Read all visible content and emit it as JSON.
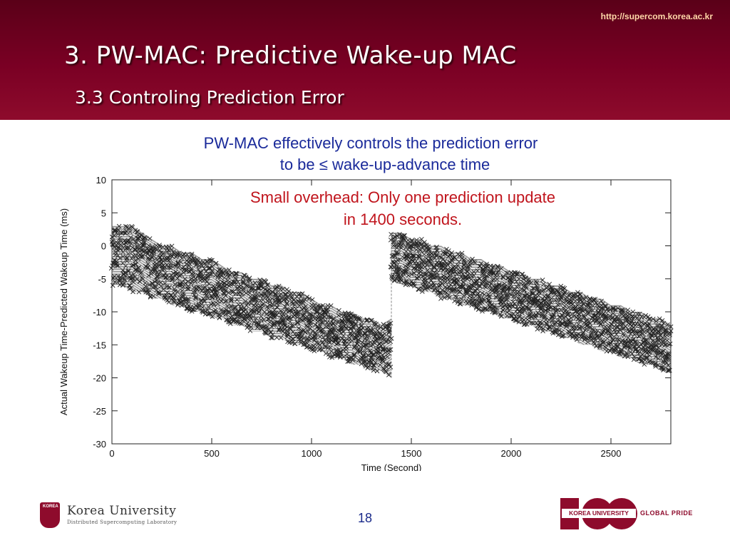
{
  "header": {
    "url": "http://supercom.korea.ac.kr",
    "title": "3. PW-MAC: Predictive Wake-up MAC",
    "subtitle": "3.3 Controling Prediction Error"
  },
  "footer": {
    "university": "Korea University",
    "lab": "Distributed Supercomputing Laboratory",
    "crest_text": "KOREA",
    "page_number": "18",
    "right_logo_band": "KOREA UNIVERSITY",
    "right_logo_tag": "GLOBAL PRIDE"
  },
  "colors": {
    "header_bg": "#7a0024",
    "brand_crimson": "#8e0b2c",
    "caption_blue": "#1a2a9a",
    "caption_red": "#c0141c"
  },
  "chart_data": {
    "type": "scatter",
    "caption_lines": [
      "PW-MAC effectively controls the prediction error",
      "to be ≤ wake-up-advance time"
    ],
    "annotation_lines": [
      "Small overhead: Only one prediction update",
      "in 1400 seconds."
    ],
    "xlabel": "Time (Second)",
    "ylabel": "Actual Wakeup Time-Predicted Wakeup Time (ms)",
    "xlim": [
      0,
      2800
    ],
    "ylim": [
      -30,
      10
    ],
    "xticks": [
      0,
      500,
      1000,
      1500,
      2000,
      2500
    ],
    "yticks": [
      -30,
      -25,
      -20,
      -15,
      -10,
      -5,
      0,
      5,
      10
    ],
    "marker": "x",
    "grid": false,
    "series": [
      {
        "x": [
          0,
          50,
          100,
          150,
          200,
          250,
          300,
          350,
          400,
          450,
          500,
          550,
          600,
          650,
          700,
          750,
          800,
          850,
          900,
          950,
          1000,
          1050,
          1100,
          1150,
          1200,
          1250,
          1300,
          1350,
          1400
        ],
        "y_max": [
          3,
          3,
          3,
          2,
          1,
          0,
          0,
          -1,
          -1,
          -2,
          -2,
          -3,
          -4,
          -4,
          -5,
          -5,
          -6,
          -6,
          -7,
          -7,
          -8,
          -9,
          -9,
          -10,
          -10,
          -11,
          -11,
          -12,
          -11
        ],
        "y_min": [
          -6,
          -6,
          -7,
          -7,
          -8,
          -8,
          -9,
          -9,
          -10,
          -10,
          -11,
          -11,
          -12,
          -12,
          -13,
          -13,
          -14,
          -14,
          -15,
          -15,
          -16,
          -16,
          -17,
          -17,
          -18,
          -18,
          -19,
          -19,
          -20
        ]
      },
      {
        "x": [
          1400,
          1450,
          1500,
          1550,
          1600,
          1650,
          1700,
          1750,
          1800,
          1850,
          1900,
          1950,
          2000,
          2050,
          2100,
          2150,
          2200,
          2250,
          2300,
          2350,
          2400,
          2450,
          2500,
          2550,
          2600,
          2650,
          2700,
          2750,
          2800
        ],
        "y_max": [
          2,
          2,
          1,
          1,
          0,
          0,
          -1,
          -1,
          -2,
          -2,
          -3,
          -3,
          -4,
          -4,
          -5,
          -5,
          -6,
          -6,
          -7,
          -7,
          -8,
          -8,
          -9,
          -9,
          -10,
          -10,
          -11,
          -11,
          -12
        ],
        "y_min": [
          -5,
          -6,
          -6,
          -7,
          -7,
          -8,
          -8,
          -9,
          -9,
          -10,
          -10,
          -11,
          -11,
          -12,
          -12,
          -13,
          -13,
          -14,
          -14,
          -15,
          -15,
          -16,
          -16,
          -17,
          -17,
          -18,
          -18,
          -19,
          -19
        ]
      }
    ]
  }
}
